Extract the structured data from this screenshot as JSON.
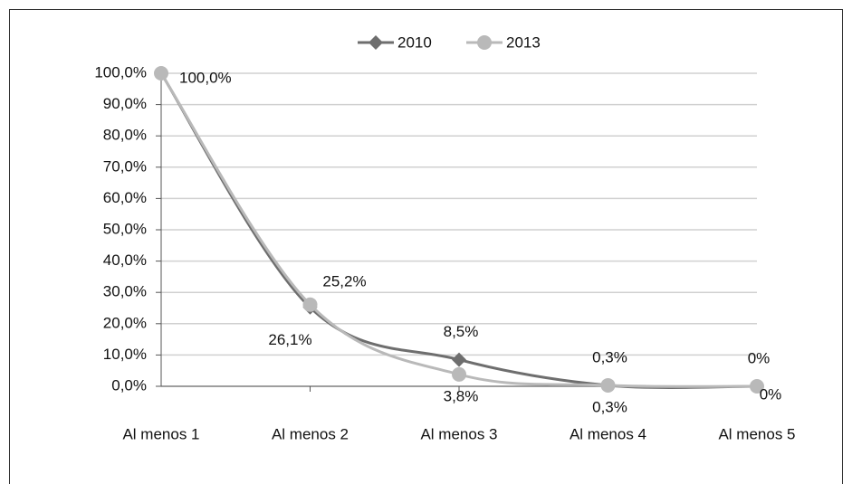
{
  "chart_data": {
    "type": "line",
    "categories": [
      "Al menos 1",
      "Al menos 2",
      "Al menos 3",
      "Al menos 4",
      "Al menos 5"
    ],
    "series": [
      {
        "name": "2010",
        "color": "#6e6e6e",
        "marker": "diamond",
        "values": [
          100,
          25.2,
          8.5,
          0.3,
          0
        ],
        "value_labels": [
          "100,0%",
          "25,2%",
          "8,5%",
          "0,3%",
          "0%"
        ]
      },
      {
        "name": "2013",
        "color": "#b9b9b9",
        "marker": "circle",
        "values": [
          100,
          26.1,
          3.8,
          0.3,
          0
        ],
        "value_labels": [
          null,
          "26,1%",
          "3,8%",
          "0,3%",
          "0%"
        ]
      }
    ],
    "ylim": [
      0,
      100
    ],
    "yticks": [
      {
        "value": 0,
        "label": "0,0%"
      },
      {
        "value": 10,
        "label": "10,0%"
      },
      {
        "value": 20,
        "label": "20,0%"
      },
      {
        "value": 30,
        "label": "30,0%"
      },
      {
        "value": 40,
        "label": "40,0%"
      },
      {
        "value": 50,
        "label": "50,0%"
      },
      {
        "value": 60,
        "label": "60,0%"
      },
      {
        "value": 70,
        "label": "70,0%"
      },
      {
        "value": 80,
        "label": "80,0%"
      },
      {
        "value": 90,
        "label": "90,0%"
      },
      {
        "value": 100,
        "label": "100,0%"
      }
    ],
    "grid": true,
    "legend": "top"
  }
}
